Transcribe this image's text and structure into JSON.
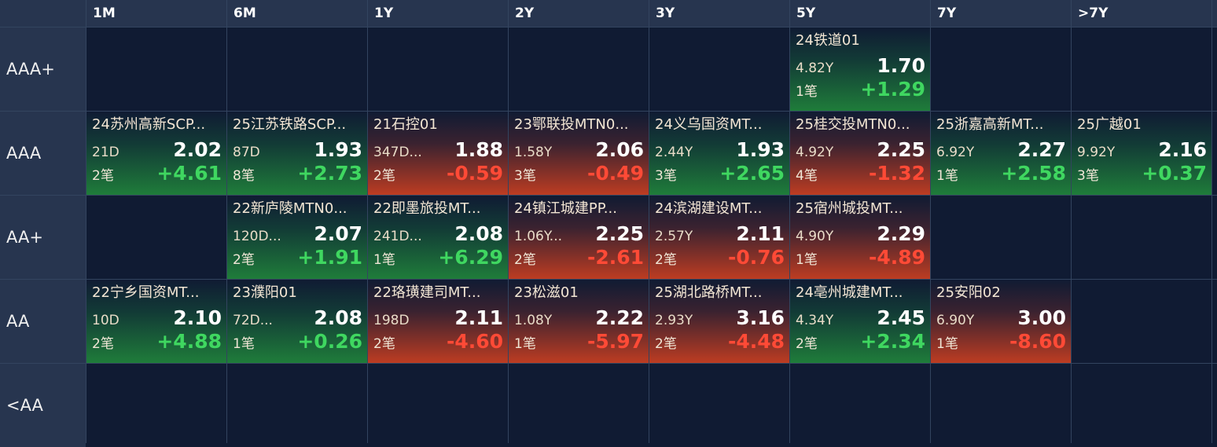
{
  "columns": [
    "1M",
    "6M",
    "1Y",
    "2Y",
    "3Y",
    "5Y",
    "7Y",
    ">7Y"
  ],
  "rows": [
    {
      "label": "AAA+",
      "cells": [
        null,
        null,
        null,
        null,
        null,
        {
          "name": "24铁道01",
          "term": "4.82Y",
          "yield": "1.70",
          "count": "1笔",
          "change": "+1.29",
          "trend": "up"
        },
        null,
        null
      ]
    },
    {
      "label": "AAA",
      "cells": [
        {
          "name": "24苏州高新SCP...",
          "term": "21D",
          "yield": "2.02",
          "count": "2笔",
          "change": "+4.61",
          "trend": "up"
        },
        {
          "name": "25江苏铁路SCP...",
          "term": "87D",
          "yield": "1.93",
          "count": "8笔",
          "change": "+2.73",
          "trend": "up"
        },
        {
          "name": "21石控01",
          "term": "347D...",
          "yield": "1.88",
          "count": "2笔",
          "change": "-0.59",
          "trend": "down"
        },
        {
          "name": "23鄂联投MTN0...",
          "term": "1.58Y",
          "yield": "2.06",
          "count": "3笔",
          "change": "-0.49",
          "trend": "down"
        },
        {
          "name": "24义乌国资MT...",
          "term": "2.44Y",
          "yield": "1.93",
          "count": "3笔",
          "change": "+2.65",
          "trend": "up"
        },
        {
          "name": "25桂交投MTN0...",
          "term": "4.92Y",
          "yield": "2.25",
          "count": "4笔",
          "change": "-1.32",
          "trend": "down"
        },
        {
          "name": "25浙嘉高新MT...",
          "term": "6.92Y",
          "yield": "2.27",
          "count": "1笔",
          "change": "+2.58",
          "trend": "up"
        },
        {
          "name": "25广越01",
          "term": "9.92Y",
          "yield": "2.16",
          "count": "3笔",
          "change": "+0.37",
          "trend": "up"
        }
      ]
    },
    {
      "label": "AA+",
      "cells": [
        null,
        {
          "name": "22新庐陵MTN0...",
          "term": "120D...",
          "yield": "2.07",
          "count": "2笔",
          "change": "+1.91",
          "trend": "up"
        },
        {
          "name": "22即墨旅投MT...",
          "term": "241D...",
          "yield": "2.08",
          "count": "1笔",
          "change": "+6.29",
          "trend": "up"
        },
        {
          "name": "24镇江城建PP...",
          "term": "1.06Y...",
          "yield": "2.25",
          "count": "2笔",
          "change": "-2.61",
          "trend": "down"
        },
        {
          "name": "24滨湖建设MT...",
          "term": "2.57Y",
          "yield": "2.11",
          "count": "2笔",
          "change": "-0.76",
          "trend": "down"
        },
        {
          "name": "25宿州城投MT...",
          "term": "4.90Y",
          "yield": "2.29",
          "count": "1笔",
          "change": "-4.89",
          "trend": "down"
        },
        null,
        null
      ]
    },
    {
      "label": "AA",
      "cells": [
        {
          "name": "22宁乡国资MT...",
          "term": "10D",
          "yield": "2.10",
          "count": "2笔",
          "change": "+4.88",
          "trend": "up"
        },
        {
          "name": "23濮阳01",
          "term": "72D...",
          "yield": "2.08",
          "count": "1笔",
          "change": "+0.26",
          "trend": "up"
        },
        {
          "name": "22珞璜建司MT...",
          "term": "198D",
          "yield": "2.11",
          "count": "2笔",
          "change": "-4.60",
          "trend": "down"
        },
        {
          "name": "23松滋01",
          "term": "1.08Y",
          "yield": "2.22",
          "count": "1笔",
          "change": "-5.97",
          "trend": "down"
        },
        {
          "name": "25湖北路桥MT...",
          "term": "2.93Y",
          "yield": "3.16",
          "count": "2笔",
          "change": "-4.48",
          "trend": "down"
        },
        {
          "name": "24亳州城建MT...",
          "term": "4.34Y",
          "yield": "2.45",
          "count": "2笔",
          "change": "+2.34",
          "trend": "up"
        },
        {
          "name": "25安阳02",
          "term": "6.90Y",
          "yield": "3.00",
          "count": "1笔",
          "change": "-8.60",
          "trend": "down"
        },
        null
      ]
    },
    {
      "label": "<AA",
      "cells": [
        null,
        null,
        null,
        null,
        null,
        null,
        null,
        null
      ]
    }
  ],
  "colors": {
    "background": "#101b33",
    "header": "#27354f",
    "up": "#3fd760",
    "down": "#ff4a36",
    "up_cell": "#1f7c3a",
    "down_cell": "#bd3c22"
  }
}
